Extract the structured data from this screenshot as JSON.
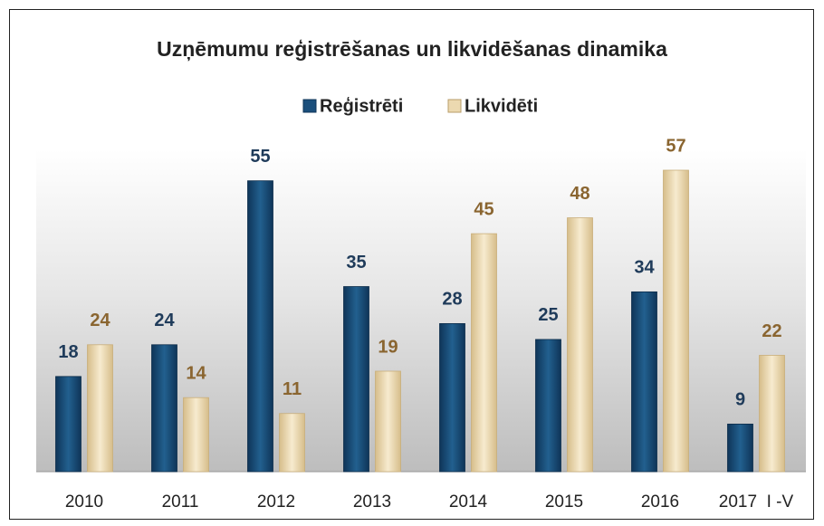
{
  "chart_data": {
    "type": "bar",
    "title": "Uzņēmumu reģistrēšanas un likvidēšanas dinamika",
    "categories": [
      "2010",
      "2011",
      "2012",
      "2013",
      "2014",
      "2015",
      "2016",
      "2017  I -V"
    ],
    "series": [
      {
        "name": "Reģistrēti",
        "color": "#1b4f7c",
        "values": [
          18,
          24,
          55,
          35,
          28,
          25,
          34,
          9
        ]
      },
      {
        "name": "Likvidēti",
        "color": "#ecd9b0",
        "values": [
          24,
          14,
          11,
          19,
          45,
          48,
          57,
          22
        ]
      }
    ],
    "label_colors": [
      "#1f3b5a",
      "#8a6530"
    ],
    "legend": "top"
  }
}
